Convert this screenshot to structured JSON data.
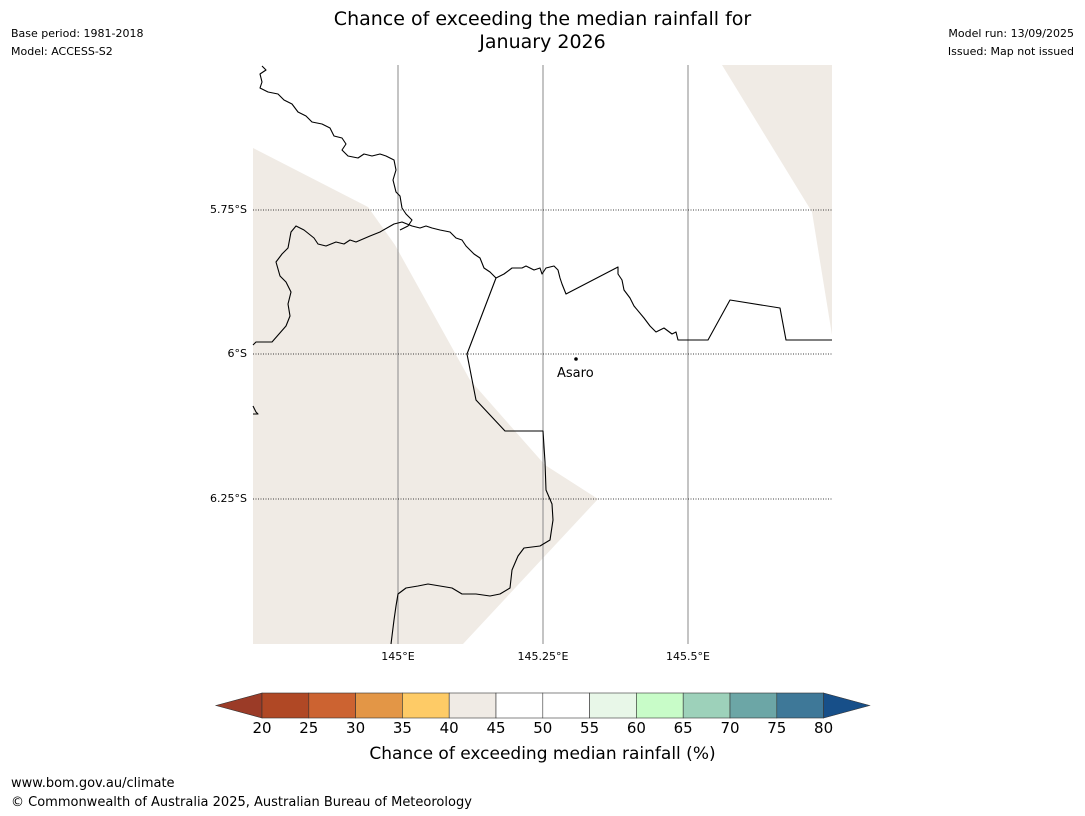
{
  "header": {
    "title_line1": "Chance of exceeding the median rainfall for",
    "title_line2": "January 2026",
    "base_period": "Base period: 1981-2018",
    "model": "Model: ACCESS-S2",
    "model_run": "Model run: 13/09/2025",
    "issued": "Issued: Map not issued"
  },
  "map": {
    "lat_labels": [
      "5.75°S",
      "6°S",
      "6.25°S"
    ],
    "lon_labels": [
      "145°E",
      "145.25°E",
      "145.5°E"
    ],
    "place": "Asaro",
    "shade_color": "#f0ebe5"
  },
  "colorbar": {
    "ticks": [
      "20",
      "25",
      "30",
      "35",
      "40",
      "45",
      "50",
      "55",
      "60",
      "65",
      "70",
      "75",
      "80"
    ],
    "label": "Chance of exceeding median rainfall (%)",
    "colors": {
      "below_20": "#9b3b27",
      "20_25": "#b04825",
      "25_30": "#cc6331",
      "30_35": "#e39646",
      "35_40": "#fecb66",
      "40_45": "#f0ebe5",
      "45_50": "#ffffff",
      "50_55": "#ffffff",
      "55_60": "#e8f7e8",
      "60_65": "#c8fcc8",
      "65_70": "#9dd1ba",
      "70_75": "#6ca6a6",
      "75_80": "#3e7898",
      "above_80": "#174f89"
    }
  },
  "footer": {
    "url": "www.bom.gov.au/climate",
    "copyright": "© Commonwealth of Australia 2025, Australian Bureau of Meteorology"
  }
}
